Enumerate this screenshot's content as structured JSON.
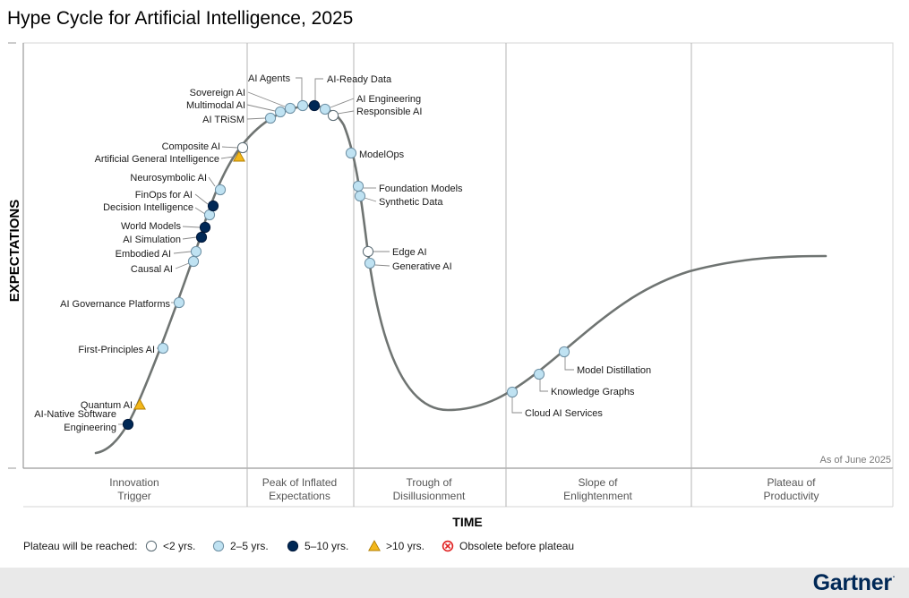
{
  "page": {
    "title": "Hype Cycle for Artificial Intelligence, 2025",
    "as_of": "As of June 2025",
    "y_axis_label": "EXPECTATIONS",
    "x_axis_label": "TIME",
    "brand": "Gartner",
    "brand_mark": "."
  },
  "phases": [
    {
      "name": "innovation-trigger",
      "line1": "Innovation",
      "line2": "Trigger"
    },
    {
      "name": "peak-of-inflated-expectations",
      "line1": "Peak of Inflated",
      "line2": "Expectations"
    },
    {
      "name": "trough-of-disillusionment",
      "line1": "Trough of",
      "line2": "Disillusionment"
    },
    {
      "name": "slope-of-enlightenment",
      "line1": "Slope of",
      "line2": "Enlightenment"
    },
    {
      "name": "plateau-of-productivity",
      "line1": "Plateau of",
      "line2": "Productivity"
    }
  ],
  "legend": {
    "title": "Plateau will be reached:",
    "items": [
      {
        "key": "lt2",
        "label": "<2 yrs.",
        "icon": "white-circle-icon",
        "color": "#ffffff"
      },
      {
        "key": "2to5",
        "label": "2–5 yrs.",
        "icon": "light-blue-circle-icon",
        "color": "#bfe2f2"
      },
      {
        "key": "5to10",
        "label": "5–10 yrs.",
        "icon": "navy-circle-icon",
        "color": "#002856"
      },
      {
        "key": "gt10",
        "label": ">10 yrs.",
        "icon": "yellow-triangle-icon",
        "color": "#f3b71a"
      },
      {
        "key": "obsolete",
        "label": "Obsolete before plateau",
        "icon": "red-x-circle-icon",
        "color": "#e02020"
      }
    ]
  },
  "chart_data": {
    "type": "scatter",
    "title": "Hype Cycle for Artificial Intelligence, 2025",
    "xlabel": "TIME",
    "ylabel": "EXPECTATIONS",
    "grid": false,
    "legend_position": "bottom-left",
    "series": [
      {
        "key": "lt2",
        "label": "<2 yrs."
      },
      {
        "key": "2to5",
        "label": "2–5 yrs."
      },
      {
        "key": "5to10",
        "label": "5–10 yrs."
      },
      {
        "key": "gt10",
        "label": ">10 yrs."
      },
      {
        "key": "obsolete",
        "label": "Obsolete before plateau"
      }
    ],
    "points": [
      {
        "label": "AI-Native Software Engineering",
        "phase": "Innovation Trigger",
        "plateau": "5to10"
      },
      {
        "label": "Quantum AI",
        "phase": "Innovation Trigger",
        "plateau": "gt10"
      },
      {
        "label": "First-Principles AI",
        "phase": "Innovation Trigger",
        "plateau": "2to5"
      },
      {
        "label": "AI Governance Platforms",
        "phase": "Innovation Trigger",
        "plateau": "2to5"
      },
      {
        "label": "Causal AI",
        "phase": "Innovation Trigger",
        "plateau": "2to5"
      },
      {
        "label": "Embodied AI",
        "phase": "Innovation Trigger",
        "plateau": "2to5"
      },
      {
        "label": "AI Simulation",
        "phase": "Innovation Trigger",
        "plateau": "5to10"
      },
      {
        "label": "World Models",
        "phase": "Innovation Trigger",
        "plateau": "5to10"
      },
      {
        "label": "Decision Intelligence",
        "phase": "Innovation Trigger",
        "plateau": "2to5"
      },
      {
        "label": "FinOps for AI",
        "phase": "Innovation Trigger",
        "plateau": "5to10"
      },
      {
        "label": "Neurosymbolic AI",
        "phase": "Innovation Trigger",
        "plateau": "2to5"
      },
      {
        "label": "Artificial General Intelligence",
        "phase": "Innovation Trigger",
        "plateau": "gt10"
      },
      {
        "label": "Composite AI",
        "phase": "Innovation Trigger",
        "plateau": "lt2"
      },
      {
        "label": "AI TRiSM",
        "phase": "Peak of Inflated Expectations",
        "plateau": "2to5"
      },
      {
        "label": "Multimodal AI",
        "phase": "Peak of Inflated Expectations",
        "plateau": "2to5"
      },
      {
        "label": "Sovereign AI",
        "phase": "Peak of Inflated Expectations",
        "plateau": "2to5"
      },
      {
        "label": "AI Agents",
        "phase": "Peak of Inflated Expectations",
        "plateau": "2to5"
      },
      {
        "label": "AI-Ready Data",
        "phase": "Peak of Inflated Expectations",
        "plateau": "5to10"
      },
      {
        "label": "AI Engineering",
        "phase": "Peak of Inflated Expectations",
        "plateau": "2to5"
      },
      {
        "label": "Responsible AI",
        "phase": "Peak of Inflated Expectations",
        "plateau": "lt2"
      },
      {
        "label": "ModelOps",
        "phase": "Trough of Disillusionment",
        "plateau": "2to5"
      },
      {
        "label": "Foundation Models",
        "phase": "Trough of Disillusionment",
        "plateau": "2to5"
      },
      {
        "label": "Synthetic Data",
        "phase": "Trough of Disillusionment",
        "plateau": "2to5"
      },
      {
        "label": "Edge AI",
        "phase": "Trough of Disillusionment",
        "plateau": "lt2"
      },
      {
        "label": "Generative AI",
        "phase": "Trough of Disillusionment",
        "plateau": "2to5"
      },
      {
        "label": "Cloud AI Services",
        "phase": "Slope of Enlightenment",
        "plateau": "2to5"
      },
      {
        "label": "Knowledge Graphs",
        "phase": "Slope of Enlightenment",
        "plateau": "2to5"
      },
      {
        "label": "Model Distillation",
        "phase": "Slope of Enlightenment",
        "plateau": "2to5"
      }
    ]
  }
}
